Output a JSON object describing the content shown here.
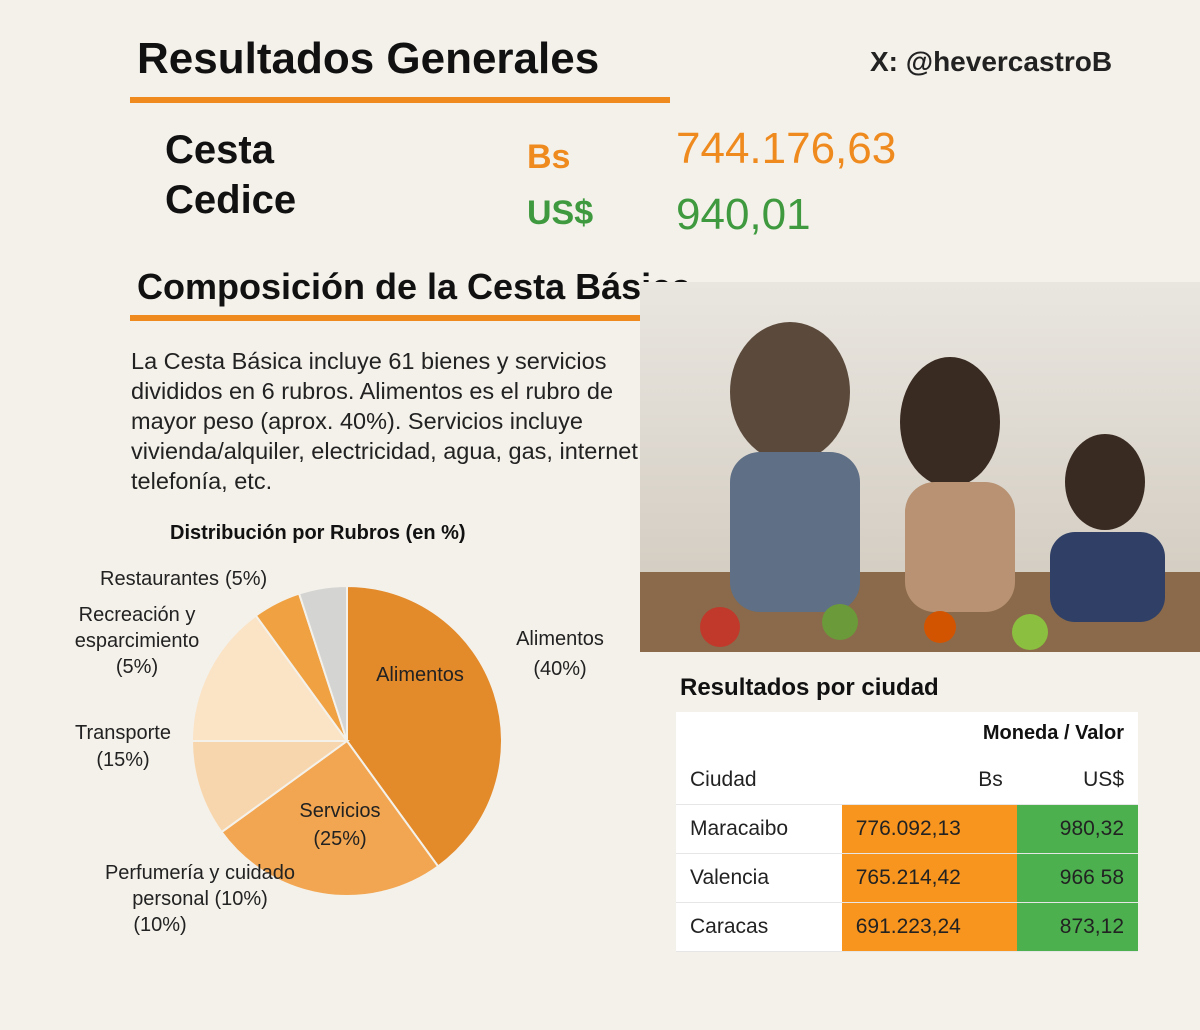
{
  "header": {
    "title": "Resultados Generales",
    "handle": "X: @hevercastroB"
  },
  "summary": {
    "label_line1": "Cesta",
    "label_line2": "Cedice",
    "bs_currency": "Bs",
    "bs_value": "744.176,63",
    "usd_currency": "US$",
    "usd_value": "940,01"
  },
  "composition": {
    "title": "Composición de la Cesta Básica",
    "text": "La Cesta Básica incluye 61 bienes y servicios divididos en 6 rubros. Alimentos es el rubro de mayor peso (aprox. 40%). Servicios incluye vivienda/alquiler, electricidad, agua, gas, internet, telefonía, etc."
  },
  "chart_data": {
    "type": "pie",
    "title": "Distribución por Rubros (en %)",
    "categories": [
      "Alimentos",
      "Servicios",
      "Perfumería y cuidado personal (10%)",
      "Transporte",
      "Recreación y esparcimiento",
      "Restaurantes"
    ],
    "values": [
      40,
      25,
      10,
      15,
      5,
      5
    ],
    "value_labels": [
      "(40%)",
      "(25%)",
      "(10%)",
      "(15%)",
      "(5%)",
      "(5%)"
    ],
    "colors": [
      "#e38a2b",
      "#f2a651",
      "#f8d6ad",
      "#fbe3c6",
      "#f0a142",
      "#d4d4d2"
    ]
  },
  "table": {
    "title": "Resultados por ciudad",
    "group_header": "Moneda / Valor",
    "columns": [
      "Ciudad",
      "Bs",
      "US$"
    ],
    "rows": [
      [
        "Maracaibo",
        "776.092,13",
        "980,32"
      ],
      [
        "Valencia",
        "765.214,42",
        "966 58"
      ],
      [
        "Caracas",
        "691.223,24",
        "873,12"
      ]
    ]
  }
}
